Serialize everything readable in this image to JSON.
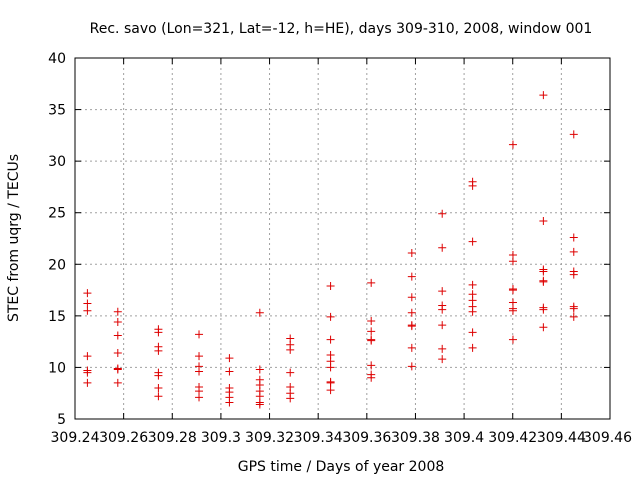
{
  "chart_data": {
    "type": "scatter",
    "title": "Rec. savo (Lon=321, Lat=-12, h=HE), days 309-310, 2008, window 001",
    "xlabel": "GPS time / Days of year 2008",
    "ylabel": "STEC from uqrg / TECUs",
    "xlim": [
      309.24,
      309.46
    ],
    "ylim": [
      5,
      40
    ],
    "x_ticks": [
      309.24,
      309.26,
      309.28,
      309.3,
      309.32,
      309.34,
      309.36,
      309.38,
      309.4,
      309.42,
      309.44,
      309.46
    ],
    "x_tick_labels": [
      "309.24",
      "309.26",
      "309.28",
      "309.3",
      "309.32",
      "309.34",
      "309.36",
      "309.38",
      "309.4",
      "309.42",
      "309.44",
      "309.46"
    ],
    "y_ticks": [
      5,
      10,
      15,
      20,
      25,
      30,
      35,
      40
    ],
    "y_tick_labels": [
      "5",
      "10",
      "15",
      "20",
      "25",
      "30",
      "35",
      "40"
    ],
    "grid": true,
    "marker": "+",
    "marker_color": "#dd0000",
    "series": [
      {
        "points": [
          [
            309.2451,
            17.2
          ],
          [
            309.2451,
            16.2
          ],
          [
            309.2451,
            15.5
          ],
          [
            309.2451,
            11.1
          ],
          [
            309.2451,
            9.7
          ],
          [
            309.2451,
            9.5
          ],
          [
            309.2451,
            8.5
          ],
          [
            309.2576,
            15.4
          ],
          [
            309.2576,
            14.4
          ],
          [
            309.2576,
            13.1
          ],
          [
            309.2576,
            11.4
          ],
          [
            309.2576,
            9.9
          ],
          [
            309.2576,
            9.8
          ],
          [
            309.2576,
            8.5
          ],
          [
            309.2743,
            13.7
          ],
          [
            309.2743,
            13.4
          ],
          [
            309.2743,
            12.0
          ],
          [
            309.2743,
            11.6
          ],
          [
            309.2743,
            9.5
          ],
          [
            309.2743,
            9.2
          ],
          [
            309.2743,
            8.0
          ],
          [
            309.2743,
            7.2
          ],
          [
            309.291,
            13.2
          ],
          [
            309.291,
            11.1
          ],
          [
            309.291,
            10.1
          ],
          [
            309.291,
            9.6
          ],
          [
            309.291,
            8.1
          ],
          [
            309.291,
            7.7
          ],
          [
            309.291,
            7.1
          ],
          [
            309.3035,
            10.9
          ],
          [
            309.3035,
            9.6
          ],
          [
            309.3035,
            8.0
          ],
          [
            309.3035,
            7.6
          ],
          [
            309.3035,
            7.1
          ],
          [
            309.3035,
            6.6
          ],
          [
            309.316,
            15.3
          ],
          [
            309.316,
            9.8
          ],
          [
            309.316,
            8.8
          ],
          [
            309.316,
            8.3
          ],
          [
            309.316,
            7.7
          ],
          [
            309.316,
            7.2
          ],
          [
            309.316,
            6.6
          ],
          [
            309.316,
            6.4
          ],
          [
            309.3285,
            12.8
          ],
          [
            309.3285,
            12.2
          ],
          [
            309.3285,
            11.7
          ],
          [
            309.3285,
            9.5
          ],
          [
            309.3285,
            8.1
          ],
          [
            309.3285,
            7.5
          ],
          [
            309.3285,
            7.0
          ],
          [
            309.3451,
            17.9
          ],
          [
            309.3451,
            14.9
          ],
          [
            309.3451,
            12.7
          ],
          [
            309.3451,
            11.2
          ],
          [
            309.3451,
            10.6
          ],
          [
            309.3451,
            10.0
          ],
          [
            309.3451,
            8.6
          ],
          [
            309.3451,
            8.5
          ],
          [
            309.3451,
            7.8
          ],
          [
            309.3618,
            18.2
          ],
          [
            309.3618,
            14.5
          ],
          [
            309.3618,
            13.5
          ],
          [
            309.3618,
            12.7
          ],
          [
            309.3618,
            12.6
          ],
          [
            309.3618,
            10.2
          ],
          [
            309.3618,
            9.3
          ],
          [
            309.3618,
            9.0
          ],
          [
            309.3785,
            21.1
          ],
          [
            309.3785,
            18.8
          ],
          [
            309.3785,
            16.8
          ],
          [
            309.3785,
            15.3
          ],
          [
            309.3785,
            14.1
          ],
          [
            309.3785,
            14.0
          ],
          [
            309.3785,
            11.9
          ],
          [
            309.3785,
            10.1
          ],
          [
            309.391,
            24.9
          ],
          [
            309.391,
            21.6
          ],
          [
            309.391,
            17.4
          ],
          [
            309.391,
            16.0
          ],
          [
            309.391,
            15.6
          ],
          [
            309.391,
            14.1
          ],
          [
            309.391,
            11.8
          ],
          [
            309.391,
            10.8
          ],
          [
            309.4035,
            28.0
          ],
          [
            309.4035,
            27.6
          ],
          [
            309.4035,
            22.2
          ],
          [
            309.4035,
            18.0
          ],
          [
            309.4035,
            17.1
          ],
          [
            309.4035,
            16.5
          ],
          [
            309.4035,
            15.9
          ],
          [
            309.4035,
            15.4
          ],
          [
            309.4035,
            13.4
          ],
          [
            309.4035,
            11.9
          ],
          [
            309.4201,
            31.6
          ],
          [
            309.4201,
            20.9
          ],
          [
            309.4201,
            20.3
          ],
          [
            309.4201,
            17.6
          ],
          [
            309.4201,
            17.5
          ],
          [
            309.4201,
            16.3
          ],
          [
            309.4201,
            15.7
          ],
          [
            309.4201,
            15.5
          ],
          [
            309.4201,
            12.7
          ],
          [
            309.4326,
            36.4
          ],
          [
            309.4326,
            24.2
          ],
          [
            309.4326,
            19.5
          ],
          [
            309.4326,
            19.3
          ],
          [
            309.4326,
            18.4
          ],
          [
            309.4326,
            18.3
          ],
          [
            309.4326,
            15.8
          ],
          [
            309.4326,
            15.6
          ],
          [
            309.4326,
            13.9
          ],
          [
            309.4451,
            32.6
          ],
          [
            309.4451,
            22.6
          ],
          [
            309.4451,
            21.2
          ],
          [
            309.4451,
            19.3
          ],
          [
            309.4451,
            19.0
          ],
          [
            309.4451,
            15.9
          ],
          [
            309.4451,
            15.7
          ],
          [
            309.4451,
            14.9
          ]
        ]
      }
    ]
  }
}
